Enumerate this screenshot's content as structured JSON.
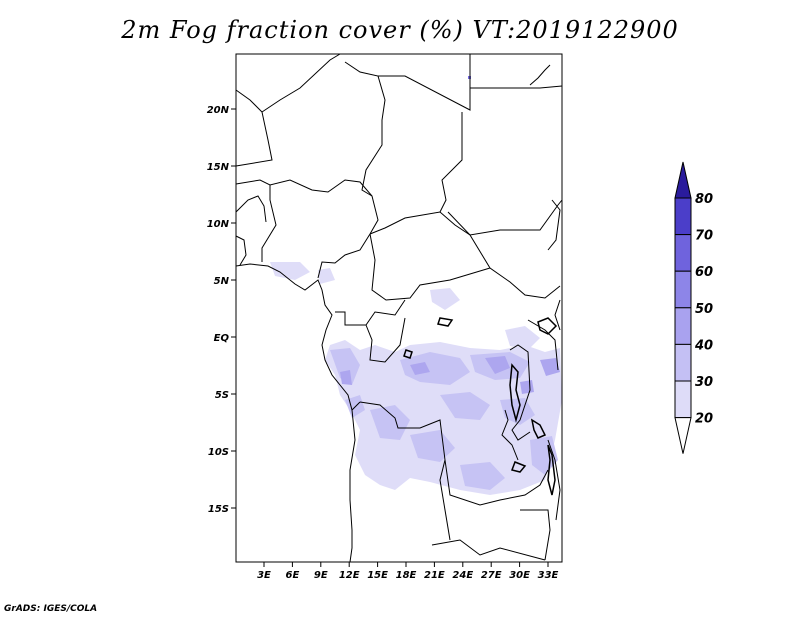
{
  "title": "2m Fog fraction cover (%) VT:2019122900",
  "credit": "GrADS: IGES/COLA",
  "lon_ticks": [
    "3E",
    "6E",
    "9E",
    "12E",
    "15E",
    "18E",
    "21E",
    "24E",
    "27E",
    "30E",
    "33E"
  ],
  "lat_ticks": [
    "20N",
    "15N",
    "10N",
    "5N",
    "EQ",
    "5S",
    "10S",
    "15S"
  ],
  "colorbar": {
    "labels": [
      "20",
      "30",
      "40",
      "50",
      "60",
      "70",
      "80"
    ],
    "colors": [
      "#ffffff",
      "#dedcf8",
      "#c4c0f4",
      "#a9a2ef",
      "#8d85e8",
      "#6f63dd",
      "#4b3ec9",
      "#2a1b9c"
    ]
  }
}
